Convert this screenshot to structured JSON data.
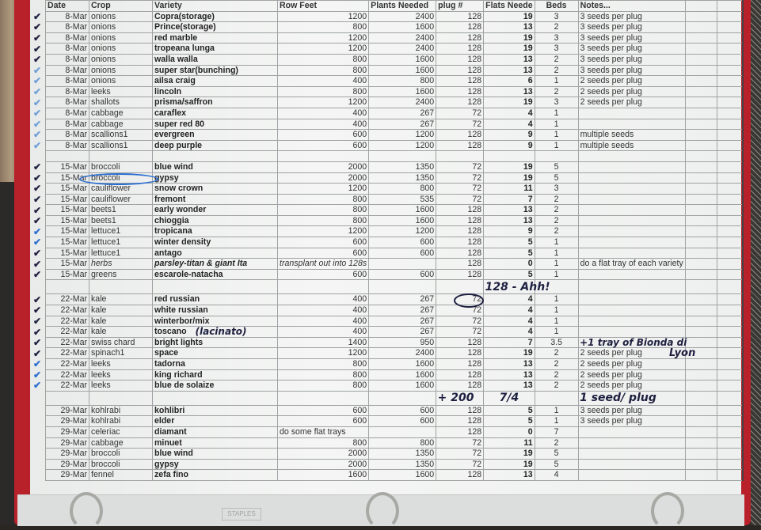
{
  "columns": [
    "Date",
    "Crop",
    "Variety",
    "Row Feet",
    "Plants Needed",
    "plug #",
    "Flats Neede",
    "Beds",
    "Notes...",
    "",
    ""
  ],
  "sections": [
    [
      [
        "8-Mar",
        "onions",
        "Copra(storage)",
        "1200",
        "2400",
        "128",
        "19",
        "3",
        "3 seeds per plug"
      ],
      [
        "8-Mar",
        "onions",
        "Prince(storage)",
        "800",
        "1600",
        "128",
        "13",
        "2",
        "3 seeds per plug"
      ],
      [
        "8-Mar",
        "onions",
        "red marble",
        "1200",
        "2400",
        "128",
        "19",
        "3",
        "3 seeds per plug"
      ],
      [
        "8-Mar",
        "onions",
        "tropeana lunga",
        "1200",
        "2400",
        "128",
        "19",
        "3",
        "3 seeds per plug"
      ],
      [
        "8-Mar",
        "onions",
        "walla walla",
        "800",
        "1600",
        "128",
        "13",
        "2",
        "3 seeds per plug"
      ],
      [
        "8-Mar",
        "onions",
        "super star(bunching)",
        "800",
        "1600",
        "128",
        "13",
        "2",
        "3 seeds per plug"
      ],
      [
        "8-Mar",
        "onions",
        "ailsa craig",
        "400",
        "800",
        "128",
        "6",
        "1",
        "2 seeds per plug"
      ],
      [
        "8-Mar",
        "leeks",
        "lincoln",
        "800",
        "1600",
        "128",
        "13",
        "2",
        "2 seeds per plug"
      ],
      [
        "8-Mar",
        "shallots",
        "prisma/saffron",
        "1200",
        "2400",
        "128",
        "19",
        "3",
        "2 seeds per plug"
      ],
      [
        "8-Mar",
        "cabbage",
        "caraflex",
        "400",
        "267",
        "72",
        "4",
        "1",
        ""
      ],
      [
        "8-Mar",
        "cabbage",
        "super red 80",
        "400",
        "267",
        "72",
        "4",
        "1",
        ""
      ],
      [
        "8-Mar",
        "scallions1",
        "evergreen",
        "600",
        "1200",
        "128",
        "9",
        "1",
        "multiple seeds"
      ],
      [
        "8-Mar",
        "scallions1",
        "deep purple",
        "600",
        "1200",
        "128",
        "9",
        "1",
        "multiple seeds"
      ]
    ],
    [
      [
        "15-Mar",
        "broccoli",
        "blue wind",
        "2000",
        "1350",
        "72",
        "19",
        "5",
        ""
      ],
      [
        "15-Mar",
        "broccoli",
        "gypsy",
        "2000",
        "1350",
        "72",
        "19",
        "5",
        ""
      ],
      [
        "15-Mar",
        "cauliflower",
        "snow crown",
        "1200",
        "800",
        "72",
        "11",
        "3",
        ""
      ],
      [
        "15-Mar",
        "cauliflower",
        "fremont",
        "800",
        "535",
        "72",
        "7",
        "2",
        ""
      ],
      [
        "15-Mar",
        "beets1",
        "early wonder",
        "800",
        "1600",
        "128",
        "13",
        "2",
        ""
      ],
      [
        "15-Mar",
        "beets1",
        "chioggia",
        "800",
        "1600",
        "128",
        "13",
        "2",
        ""
      ],
      [
        "15-Mar",
        "lettuce1",
        "tropicana",
        "1200",
        "1200",
        "128",
        "9",
        "2",
        ""
      ],
      [
        "15-Mar",
        "lettuce1",
        "winter density",
        "600",
        "600",
        "128",
        "5",
        "1",
        ""
      ],
      [
        "15-Mar",
        "lettuce1",
        "antago",
        "600",
        "600",
        "128",
        "5",
        "1",
        ""
      ],
      [
        "15-Mar",
        "herbs",
        "parsley-titan & giant Ita",
        "transplant out into 128s",
        "",
        "128",
        "0",
        "1",
        "do a flat tray of each variety"
      ],
      [
        "15-Mar",
        "greens",
        "escarole-natacha",
        "600",
        "600",
        "128",
        "5",
        "1",
        ""
      ]
    ],
    [
      [
        "22-Mar",
        "kale",
        "red russian",
        "400",
        "267",
        "72",
        "4",
        "1",
        ""
      ],
      [
        "22-Mar",
        "kale",
        "white russian",
        "400",
        "267",
        "72",
        "4",
        "1",
        ""
      ],
      [
        "22-Mar",
        "kale",
        "winterbor/mix",
        "400",
        "267",
        "72",
        "4",
        "1",
        ""
      ],
      [
        "22-Mar",
        "kale",
        "toscano",
        "400",
        "267",
        "72",
        "4",
        "1",
        ""
      ],
      [
        "22-Mar",
        "swiss chard",
        "bright lights",
        "1400",
        "950",
        "128",
        "7",
        "3.5",
        ""
      ],
      [
        "22-Mar",
        "spinach1",
        "space",
        "1200",
        "2400",
        "128",
        "19",
        "2",
        "2 seeds per plug"
      ],
      [
        "22-Mar",
        "leeks",
        "tadorna",
        "800",
        "1600",
        "128",
        "13",
        "2",
        "2 seeds per plug"
      ],
      [
        "22-Mar",
        "leeks",
        "king richard",
        "800",
        "1600",
        "128",
        "13",
        "2",
        "2 seeds per plug"
      ],
      [
        "22-Mar",
        "leeks",
        "blue de solaize",
        "800",
        "1600",
        "128",
        "13",
        "2",
        "2 seeds per plug"
      ]
    ],
    [
      [
        "29-Mar",
        "kohlrabi",
        "kohlibri",
        "600",
        "600",
        "128",
        "5",
        "1",
        "3 seeds per plug"
      ],
      [
        "29-Mar",
        "kohlrabi",
        "elder",
        "600",
        "600",
        "128",
        "5",
        "1",
        "3 seeds per plug"
      ],
      [
        "29-Mar",
        "celeriac",
        "diamant",
        "do some flat trays",
        "",
        "128",
        "0",
        "7",
        ""
      ],
      [
        "29-Mar",
        "cabbage",
        "minuet",
        "800",
        "800",
        "72",
        "11",
        "2",
        ""
      ],
      [
        "29-Mar",
        "broccoli",
        "blue wind",
        "2000",
        "1350",
        "72",
        "19",
        "5",
        ""
      ],
      [
        "29-Mar",
        "broccoli",
        "gypsy",
        "2000",
        "1350",
        "72",
        "19",
        "5",
        ""
      ],
      [
        "29-Mar",
        "fennel",
        "zefa fino",
        "1600",
        "1600",
        "128",
        "13",
        "4",
        ""
      ]
    ]
  ],
  "handwritten": {
    "plug_correction": "128 - Ahh!",
    "toscano_note": "(lacinato)",
    "chard_note": "+1 tray of Bionda di",
    "chard_note_2": "Lyon",
    "leeks_plus": "+ 200",
    "leeks_flats": "7/4",
    "leeks_note": "1 seed/ plug"
  },
  "binder_stamp": "STAPLES",
  "colors": {
    "ink_dark": "#1e2040",
    "ink_blue": "#2d6fd0",
    "binder": "#b8202a"
  }
}
